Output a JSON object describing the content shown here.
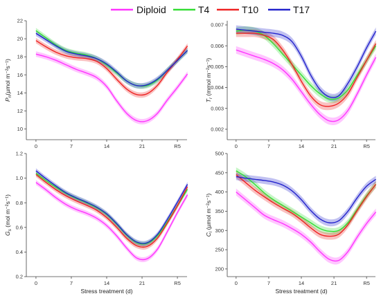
{
  "legend": [
    {
      "name": "Diploid",
      "color": "#ff33ff"
    },
    {
      "name": "T4",
      "color": "#33dd33"
    },
    {
      "name": "T10",
      "color": "#ee2222"
    },
    {
      "name": "T17",
      "color": "#2222cc"
    }
  ],
  "chart_data": [
    {
      "type": "line",
      "panel": "top-left",
      "ylabel": "Pn(µmol m⁻²s⁻¹)",
      "ylabel_main": "P",
      "ylabel_sub": "n",
      "ylabel_rest": "(µmol m⁻²s⁻¹)",
      "xlabel": "",
      "x_ticks": [
        "0",
        "7",
        "14",
        "21",
        "R5"
      ],
      "ylim": [
        8.8,
        22
      ],
      "y_ticks": [
        10,
        12,
        14,
        16,
        18,
        20,
        22
      ],
      "y_decimals": 0,
      "band": 0.3,
      "x": [
        0,
        2,
        4,
        6,
        8,
        10,
        12,
        14,
        16,
        18,
        20,
        22,
        24,
        26,
        28,
        30
      ],
      "series": [
        {
          "name": "Diploid",
          "color": "#ff33ff",
          "values": [
            18.3,
            18.0,
            17.6,
            17.1,
            16.6,
            16.2,
            15.7,
            14.7,
            13.1,
            11.7,
            10.9,
            10.9,
            11.7,
            13.2,
            14.6,
            16.1
          ]
        },
        {
          "name": "T4",
          "color": "#33dd33",
          "values": [
            20.9,
            20.1,
            19.3,
            18.7,
            18.4,
            18.2,
            17.8,
            17.1,
            16.2,
            15.3,
            14.8,
            14.8,
            15.4,
            16.5,
            17.6,
            18.7
          ]
        },
        {
          "name": "T10",
          "color": "#ee2222",
          "values": [
            19.8,
            19.1,
            18.5,
            18.1,
            17.9,
            17.8,
            17.5,
            16.7,
            15.5,
            14.4,
            13.8,
            13.9,
            14.8,
            16.3,
            17.7,
            19.2
          ]
        },
        {
          "name": "T17",
          "color": "#2222cc",
          "values": [
            20.6,
            19.9,
            19.2,
            18.6,
            18.3,
            18.1,
            17.8,
            17.2,
            16.3,
            15.3,
            14.8,
            14.9,
            15.5,
            16.5,
            17.6,
            18.7
          ]
        }
      ]
    },
    {
      "type": "line",
      "panel": "top-right",
      "ylabel": "Tr (mmol m⁻²s⁻¹)",
      "ylabel_main": "T",
      "ylabel_sub": "r",
      "ylabel_rest": " (mmol m⁻²s⁻¹)",
      "xlabel": "",
      "x_ticks": [
        "0",
        "7",
        "14",
        "21",
        "R5"
      ],
      "ylim": [
        0.0015,
        0.0072
      ],
      "y_ticks": [
        0.002,
        0.003,
        0.004,
        0.005,
        0.006,
        0.007
      ],
      "y_decimals": 3,
      "band": 0.00018,
      "x": [
        0,
        2,
        4,
        6,
        8,
        10,
        12,
        14,
        16,
        18,
        20,
        22,
        24,
        26,
        28,
        30
      ],
      "series": [
        {
          "name": "Diploid",
          "color": "#ff33ff",
          "values": [
            0.0058,
            0.00565,
            0.0055,
            0.00535,
            0.00515,
            0.00485,
            0.0044,
            0.0038,
            0.0032,
            0.0027,
            0.0024,
            0.00245,
            0.0029,
            0.0037,
            0.0046,
            0.00545
          ]
        },
        {
          "name": "T4",
          "color": "#33dd33",
          "values": [
            0.0067,
            0.00675,
            0.0067,
            0.0065,
            0.0061,
            0.0056,
            0.0051,
            0.0046,
            0.0041,
            0.0037,
            0.00345,
            0.0035,
            0.0039,
            0.0046,
            0.0053,
            0.006
          ]
        },
        {
          "name": "T10",
          "color": "#ee2222",
          "values": [
            0.0066,
            0.0066,
            0.0066,
            0.0065,
            0.0063,
            0.0058,
            0.0051,
            0.0043,
            0.0036,
            0.00318,
            0.0031,
            0.00325,
            0.0037,
            0.0045,
            0.0053,
            0.0061
          ]
        },
        {
          "name": "T17",
          "color": "#2222cc",
          "values": [
            0.0068,
            0.00675,
            0.0067,
            0.00665,
            0.0066,
            0.0065,
            0.0062,
            0.0055,
            0.0046,
            0.0039,
            0.00355,
            0.0036,
            0.0042,
            0.005,
            0.0059,
            0.0067
          ]
        }
      ]
    },
    {
      "type": "line",
      "panel": "bottom-left",
      "ylabel": "Gs (mol m⁻²s⁻¹)",
      "ylabel_main": "G",
      "ylabel_sub": "s",
      "ylabel_rest": " (mol m⁻²s⁻¹)",
      "xlabel": "Stress treatment (d)",
      "x_ticks": [
        "0",
        "7",
        "14",
        "21",
        "R5"
      ],
      "ylim": [
        0.2,
        1.2
      ],
      "y_ticks": [
        0.2,
        0.4,
        0.6,
        0.8,
        1.0,
        1.2
      ],
      "y_decimals": 1,
      "band": 0.02,
      "x": [
        0,
        2,
        4,
        6,
        8,
        10,
        12,
        14,
        16,
        18,
        20,
        22,
        24,
        26,
        28,
        30
      ],
      "series": [
        {
          "name": "Diploid",
          "color": "#ff33ff",
          "values": [
            0.965,
            0.905,
            0.84,
            0.785,
            0.745,
            0.715,
            0.675,
            0.615,
            0.53,
            0.43,
            0.35,
            0.345,
            0.42,
            0.565,
            0.72,
            0.865
          ]
        },
        {
          "name": "T4",
          "color": "#33dd33",
          "values": [
            1.04,
            0.98,
            0.925,
            0.875,
            0.835,
            0.8,
            0.76,
            0.705,
            0.625,
            0.535,
            0.475,
            0.47,
            0.53,
            0.645,
            0.775,
            0.91
          ]
        },
        {
          "name": "T10",
          "color": "#ee2222",
          "values": [
            1.03,
            0.965,
            0.905,
            0.855,
            0.815,
            0.78,
            0.74,
            0.68,
            0.6,
            0.51,
            0.45,
            0.445,
            0.51,
            0.635,
            0.775,
            0.93
          ]
        },
        {
          "name": "T17",
          "color": "#2222cc",
          "values": [
            1.06,
            0.995,
            0.935,
            0.88,
            0.84,
            0.805,
            0.765,
            0.71,
            0.63,
            0.54,
            0.48,
            0.475,
            0.54,
            0.665,
            0.805,
            0.95
          ]
        }
      ]
    },
    {
      "type": "line",
      "panel": "bottom-right",
      "ylabel": "Ci (µmol m⁻²s⁻¹)",
      "ylabel_main": "C",
      "ylabel_sub": "i",
      "ylabel_rest": " (µmol m⁻²s⁻¹)",
      "xlabel": "Stress treatment (d)",
      "x_ticks": [
        "0",
        "7",
        "14",
        "21",
        "R5"
      ],
      "ylim": [
        180,
        500
      ],
      "y_ticks": [
        200,
        250,
        300,
        350,
        400,
        450,
        500
      ],
      "y_decimals": 0,
      "band": 9,
      "x": [
        0,
        2,
        4,
        6,
        8,
        10,
        12,
        14,
        16,
        18,
        20,
        22,
        24,
        26,
        28,
        30
      ],
      "series": [
        {
          "name": "Diploid",
          "color": "#ff33ff",
          "values": [
            400,
            380,
            360,
            340,
            328,
            318,
            305,
            290,
            270,
            245,
            225,
            222,
            245,
            283,
            318,
            348
          ]
        },
        {
          "name": "T4",
          "color": "#33dd33",
          "values": [
            455,
            440,
            420,
            398,
            380,
            365,
            350,
            335,
            320,
            305,
            298,
            300,
            320,
            355,
            390,
            420
          ]
        },
        {
          "name": "T10",
          "color": "#ee2222",
          "values": [
            445,
            425,
            405,
            388,
            372,
            358,
            345,
            327,
            307,
            290,
            285,
            290,
            315,
            352,
            388,
            420
          ]
        },
        {
          "name": "T17",
          "color": "#2222cc",
          "values": [
            440,
            436,
            433,
            430,
            426,
            418,
            403,
            380,
            352,
            330,
            320,
            325,
            350,
            385,
            415,
            433
          ]
        }
      ]
    }
  ]
}
